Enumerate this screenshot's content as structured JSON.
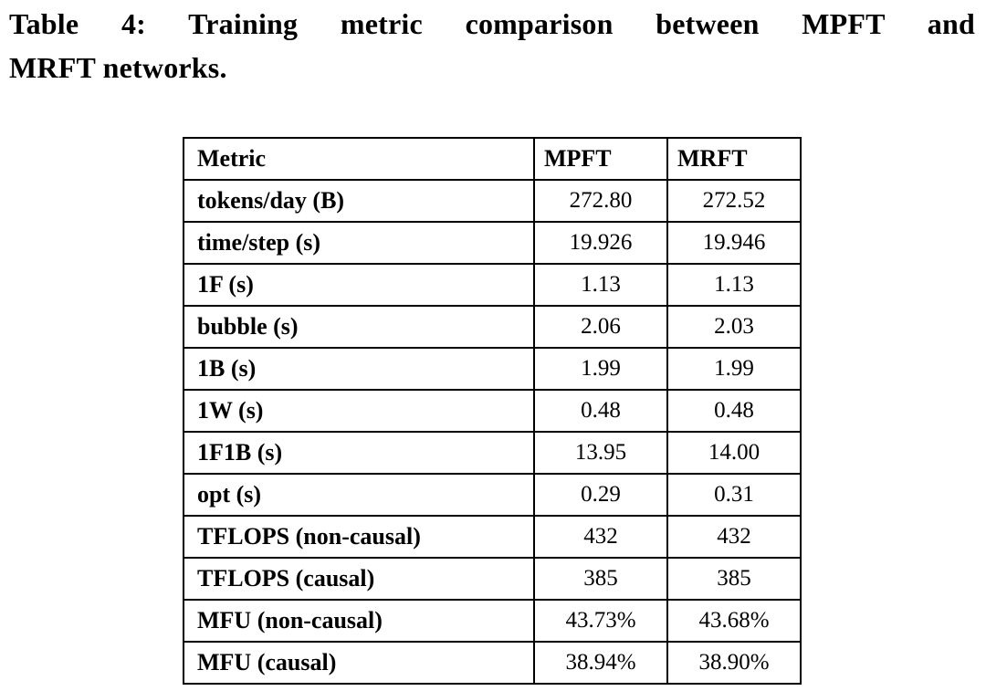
{
  "caption": {
    "line1": "Table 4: Training metric comparison between MPFT and",
    "line2": "MRFT networks."
  },
  "table": {
    "headers": [
      "Metric",
      "MPFT",
      "MRFT"
    ],
    "rows": [
      {
        "metric": "tokens/day (B)",
        "mpft": "272.80",
        "mrft": "272.52"
      },
      {
        "metric": "time/step (s)",
        "mpft": "19.926",
        "mrft": "19.946"
      },
      {
        "metric": "1F (s)",
        "mpft": "1.13",
        "mrft": "1.13"
      },
      {
        "metric": "bubble (s)",
        "mpft": "2.06",
        "mrft": "2.03"
      },
      {
        "metric": "1B (s)",
        "mpft": "1.99",
        "mrft": "1.99"
      },
      {
        "metric": "1W (s)",
        "mpft": "0.48",
        "mrft": "0.48"
      },
      {
        "metric": "1F1B (s)",
        "mpft": "13.95",
        "mrft": "14.00"
      },
      {
        "metric": "opt (s)",
        "mpft": "0.29",
        "mrft": "0.31"
      },
      {
        "metric": "TFLOPS (non-causal)",
        "mpft": "432",
        "mrft": "432"
      },
      {
        "metric": "TFLOPS (causal)",
        "mpft": "385",
        "mrft": "385"
      },
      {
        "metric": "MFU (non-causal)",
        "mpft": "43.73%",
        "mrft": "43.68%"
      },
      {
        "metric": "MFU (causal)",
        "mpft": "38.94%",
        "mrft": "38.90%"
      }
    ]
  }
}
